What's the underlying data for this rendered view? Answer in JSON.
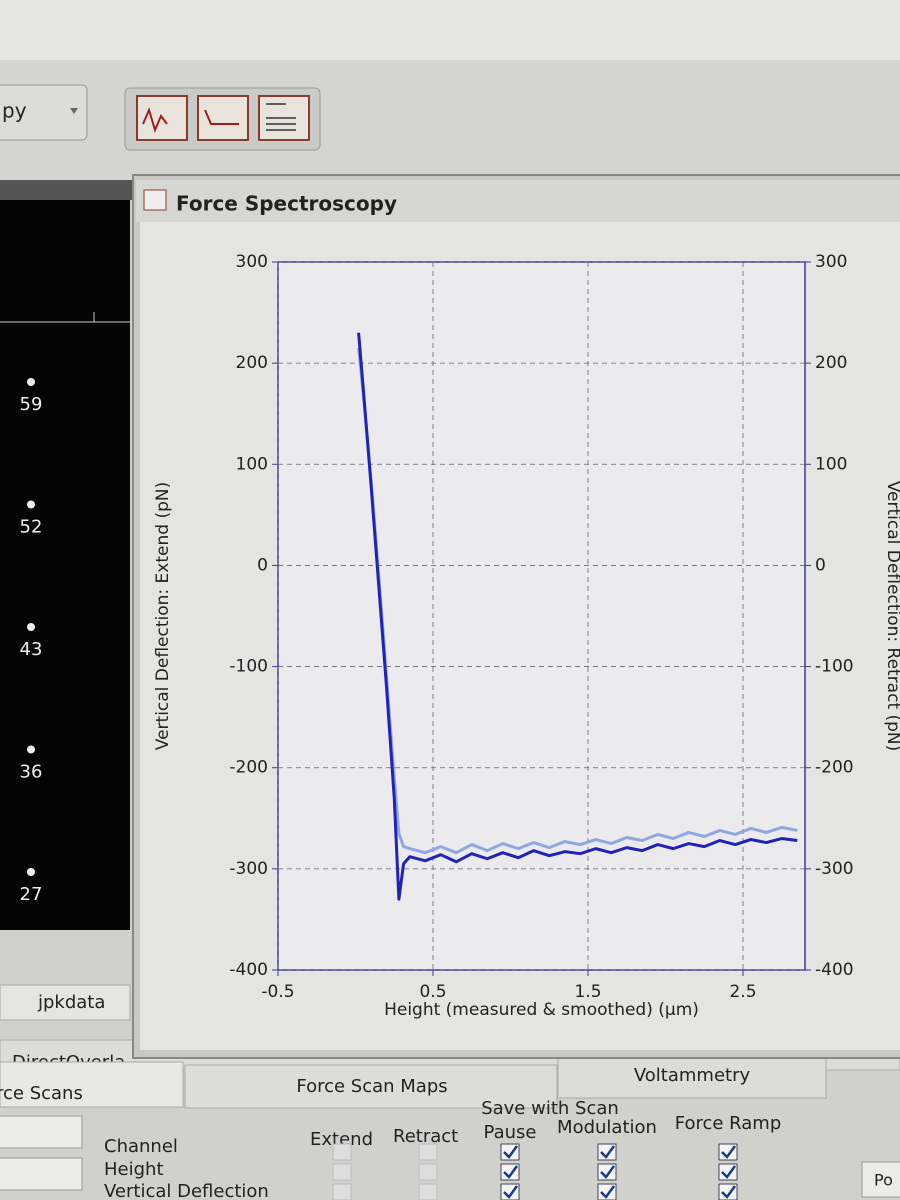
{
  "toolbar": {
    "dropdown": "py"
  },
  "window": {
    "title": "Force Spectroscopy"
  },
  "left_panel": {
    "labels": [
      "59",
      "52",
      "43",
      "36",
      "27"
    ]
  },
  "breadcrumb": "jpkdata",
  "tabs": {
    "top": [
      "DirectOverla"
    ],
    "bottom": [
      "rce Scans",
      "Force Scan Maps",
      "Voltammetry"
    ]
  },
  "settings": {
    "headers": [
      "Channel",
      "Extend",
      "Retract",
      "Save with Scan",
      "Pause",
      "Modulation",
      "Force Ramp"
    ],
    "rows": [
      "Height",
      "Vertical Deflection"
    ]
  },
  "footer_button": "Po",
  "chart_data": {
    "type": "line",
    "ylabel": "Vertical Deflection: Extend (pN)",
    "y2label": "Vertical Deflection: Retract (pN)",
    "xlabel": "Height (measured & smoothed) (µm)",
    "x": [
      0.02,
      0.05,
      0.1,
      0.15,
      0.2,
      0.25,
      0.28,
      0.31,
      0.35,
      0.45,
      0.55,
      0.65,
      0.75,
      0.85,
      0.95,
      1.05,
      1.15,
      1.25,
      1.35,
      1.45,
      1.55,
      1.65,
      1.75,
      1.85,
      1.95,
      2.05,
      2.15,
      2.25,
      2.35,
      2.45,
      2.55,
      2.65,
      2.75,
      2.85
    ],
    "series": [
      {
        "color": "#8fa6e0",
        "axis": "y2",
        "values": [
          215,
          170,
          85,
          -10,
          -110,
          -210,
          -265,
          -278,
          -280,
          -284,
          -278,
          -284,
          -276,
          -282,
          -275,
          -280,
          -274,
          -279,
          -273,
          -276,
          -271,
          -275,
          -269,
          -272,
          -266,
          -270,
          -264,
          -268,
          -262,
          -266,
          -260,
          -264,
          -259,
          -262
        ]
      },
      {
        "color": "#2222b8",
        "values": [
          230,
          175,
          80,
          -20,
          -120,
          -230,
          -330,
          -295,
          -288,
          -292,
          -286,
          -293,
          -285,
          -290,
          -284,
          -289,
          -282,
          -287,
          -283,
          -285,
          -280,
          -284,
          -279,
          -282,
          -276,
          -280,
          -275,
          -278,
          -272,
          -276,
          -271,
          -274,
          -270,
          -272
        ]
      }
    ],
    "xlim": [
      -0.5,
      2.9
    ],
    "xticks": [
      -0.5,
      0.5,
      1.5,
      2.5
    ],
    "ylim": [
      -400,
      300
    ],
    "yticks": [
      -400,
      -300,
      -200,
      -100,
      0,
      100,
      200,
      300
    ],
    "y2lim": [
      -400,
      300
    ],
    "y2ticks": [
      -400,
      -300,
      -200,
      -100,
      0,
      100,
      200,
      300
    ],
    "grid": true
  }
}
